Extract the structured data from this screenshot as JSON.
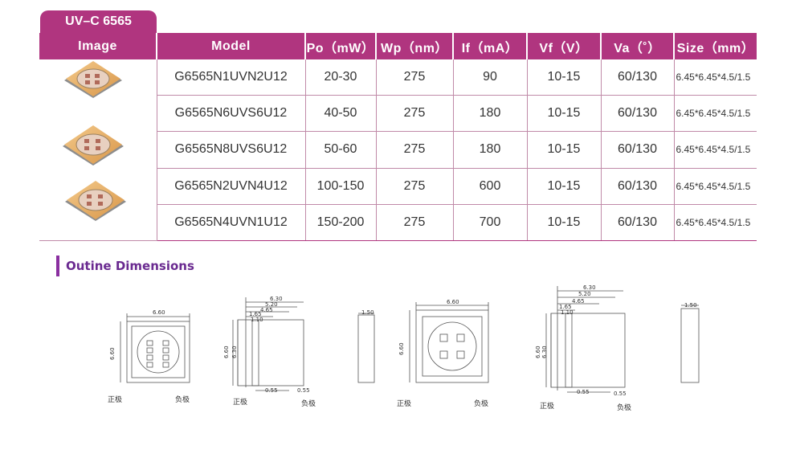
{
  "tab_label": "UV–C 6565",
  "headers": {
    "image": "Image",
    "model": "Model",
    "po": "Po（mW）",
    "wp": "Wp（nm）",
    "if": "If（mA）",
    "vf": "Vf（V）",
    "va": "Va（˚）",
    "size": "Size（mm）"
  },
  "rows": [
    {
      "model": "G6565N1UVN2U12",
      "po": "20-30",
      "wp": "275",
      "if": "90",
      "vf": "10-15",
      "va": "60/130",
      "size": "6.45*6.45*4.5/1.5"
    },
    {
      "model": "G6565N6UVS6U12",
      "po": "40-50",
      "wp": "275",
      "if": "180",
      "vf": "10-15",
      "va": "60/130",
      "size": "6.45*6.45*4.5/1.5"
    },
    {
      "model": "G6565N8UVS6U12",
      "po": "50-60",
      "wp": "275",
      "if": "180",
      "vf": "10-15",
      "va": "60/130",
      "size": "6.45*6.45*4.5/1.5"
    },
    {
      "model": "G6565N2UVN4U12",
      "po": "100-150",
      "wp": "275",
      "if": "600",
      "vf": "10-15",
      "va": "60/130",
      "size": "6.45*6.45*4.5/1.5"
    },
    {
      "model": "G6565N4UVN1U12",
      "po": "150-200",
      "wp": "275",
      "if": "700",
      "vf": "10-15",
      "va": "60/130",
      "size": "6.45*6.45*4.5/1.5"
    }
  ],
  "section_title": "Outine  Dimensions",
  "drawings": {
    "width": "6.60",
    "height": "6.60",
    "d630": "6.30",
    "d520": "5.20",
    "d465": "4.65",
    "d165": "1.65",
    "d110": "1.10",
    "d055": "0.55",
    "d150": "1.50",
    "anode": "正极",
    "cathode": "负极"
  }
}
